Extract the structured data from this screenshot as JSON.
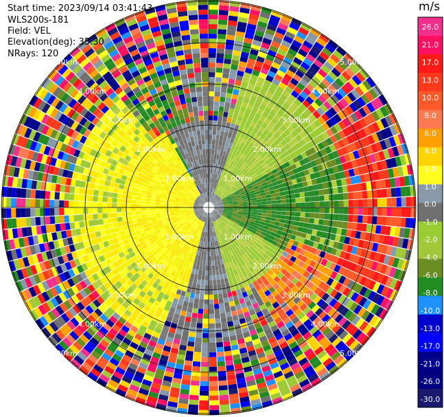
{
  "header": {
    "start_time": "Start time: 2023/09/14 03:41:43",
    "instrument": "WLS200s-181",
    "field": "Field: VEL",
    "elevation": "Elevation(deg): 35.30",
    "nrays": "NRays: 120"
  },
  "colorbar": {
    "unit": "m/s",
    "ticks": [
      {
        "label": "26.0",
        "value": 26.0
      },
      {
        "label": "21.0",
        "value": 21.0
      },
      {
        "label": "17.0",
        "value": 17.0
      },
      {
        "label": "13.0",
        "value": 13.0
      },
      {
        "label": "10.0",
        "value": 10.0
      },
      {
        "label": "8.0",
        "value": 8.0
      },
      {
        "label": "6.0",
        "value": 6.0
      },
      {
        "label": "4.0",
        "value": 4.0
      },
      {
        "label": "2.0",
        "value": 2.0
      },
      {
        "label": "1.0",
        "value": 1.0
      },
      {
        "label": "0.0",
        "value": 0.0
      },
      {
        "label": "-1.0",
        "value": -1.0
      },
      {
        "label": "-2.0",
        "value": -2.0
      },
      {
        "label": "-4.0",
        "value": -4.0
      },
      {
        "label": "-6.0",
        "value": -6.0
      },
      {
        "label": "-8.0",
        "value": -8.0
      },
      {
        "label": "-10.0",
        "value": -10.0
      },
      {
        "label": "-13.0",
        "value": -13.0
      },
      {
        "label": "-17.0",
        "value": -17.0
      },
      {
        "label": "-21.0",
        "value": -21.0
      },
      {
        "label": "-26.0",
        "value": -26.0
      },
      {
        "label": "-30.0",
        "value": -30.0
      }
    ],
    "colors": [
      "#f0308c",
      "#ff1060",
      "#ff1a1a",
      "#ff3a1c",
      "#ff5a2a",
      "#ff7a50",
      "#ffa000",
      "#ffd400",
      "#ffff1e",
      "#8899aa",
      "#707070",
      "#9acd32",
      "#a0c838",
      "#6b8e23",
      "#228b22",
      "#1e90ff",
      "#0000cd",
      "#0000ff",
      "#00008b",
      "#000080",
      "#191970"
    ]
  },
  "rings": {
    "labels": [
      "1.00km",
      "2.00km",
      "3.00km",
      "4.00km",
      "5.00km"
    ]
  }
}
